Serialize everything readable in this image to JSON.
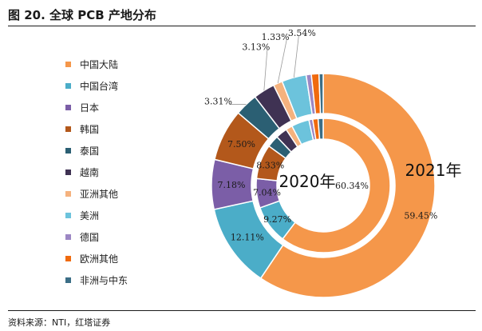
{
  "header": {
    "figure_title": "图 20. 全球 PCB 产地分布"
  },
  "footer": {
    "source": "资料来源：NTI，红塔证券"
  },
  "chart_data": {
    "type": "donut",
    "title": "图 20. 全球 PCB 产地分布",
    "legend_position": "left",
    "categories": [
      "中国大陆",
      "中国台湾",
      "日本",
      "韩国",
      "泰国",
      "越南",
      "亚洲其他",
      "美洲",
      "德国",
      "欧洲其他",
      "非洲与中东"
    ],
    "colors": [
      "#F5974A",
      "#4BADC8",
      "#7B5EA7",
      "#B3581B",
      "#2B5F73",
      "#3F3253",
      "#F5B27E",
      "#6CC3DC",
      "#9C87C4",
      "#F06A0E",
      "#3B6E86"
    ],
    "series": [
      {
        "name": "2020年",
        "ring": "inner",
        "values": [
          60.34,
          9.27,
          7.04,
          8.33,
          2.9,
          2.8,
          1.6,
          4.3,
          0.9,
          1.3,
          1.22
        ],
        "labels": [
          "60.34%",
          "9.27%",
          "7.04%",
          "8.33%",
          "",
          "",
          "",
          "",
          "",
          "",
          ""
        ]
      },
      {
        "name": "2021年",
        "ring": "outer",
        "values": [
          59.45,
          12.11,
          7.18,
          7.5,
          3.31,
          3.13,
          1.33,
          3.54,
          0.75,
          1.1,
          0.6
        ],
        "labels": [
          "59.45%",
          "12.11%",
          "7.18%",
          "7.50%",
          "3.31%",
          "3.13%",
          "1.33%",
          "3.54%",
          "",
          "",
          ""
        ]
      }
    ]
  }
}
